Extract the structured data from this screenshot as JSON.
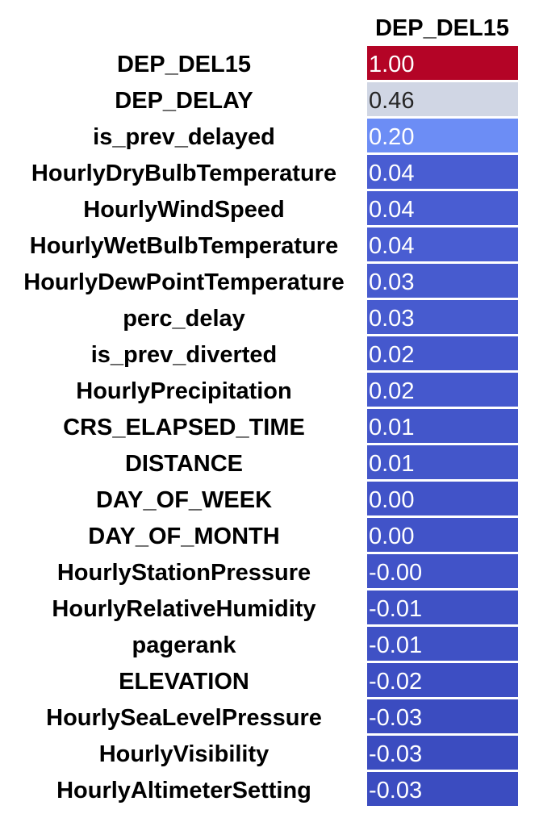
{
  "chart_data": {
    "type": "heatmap",
    "columns": [
      "DEP_DEL15"
    ],
    "rows": [
      {
        "label": "DEP_DEL15",
        "value": 1.0,
        "text": "1.00"
      },
      {
        "label": "DEP_DELAY",
        "value": 0.46,
        "text": "0.46"
      },
      {
        "label": "is_prev_delayed",
        "value": 0.2,
        "text": "0.20"
      },
      {
        "label": "HourlyDryBulbTemperature",
        "value": 0.04,
        "text": "0.04"
      },
      {
        "label": "HourlyWindSpeed",
        "value": 0.04,
        "text": "0.04"
      },
      {
        "label": "HourlyWetBulbTemperature",
        "value": 0.04,
        "text": "0.04"
      },
      {
        "label": "HourlyDewPointTemperature",
        "value": 0.03,
        "text": "0.03"
      },
      {
        "label": "perc_delay",
        "value": 0.03,
        "text": "0.03"
      },
      {
        "label": "is_prev_diverted",
        "value": 0.02,
        "text": "0.02"
      },
      {
        "label": "HourlyPrecipitation",
        "value": 0.02,
        "text": "0.02"
      },
      {
        "label": "CRS_ELAPSED_TIME",
        "value": 0.01,
        "text": "0.01"
      },
      {
        "label": "DISTANCE",
        "value": 0.01,
        "text": "0.01"
      },
      {
        "label": "DAY_OF_WEEK",
        "value": 0.0,
        "text": "0.00"
      },
      {
        "label": "DAY_OF_MONTH",
        "value": 0.0,
        "text": "0.00"
      },
      {
        "label": "HourlyStationPressure",
        "value": -0.0,
        "text": "-0.00"
      },
      {
        "label": "HourlyRelativeHumidity",
        "value": -0.01,
        "text": "-0.01"
      },
      {
        "label": "pagerank",
        "value": -0.01,
        "text": "-0.01"
      },
      {
        "label": "ELEVATION",
        "value": -0.02,
        "text": "-0.02"
      },
      {
        "label": "HourlySeaLevelPressure",
        "value": -0.03,
        "text": "-0.03"
      },
      {
        "label": "HourlyVisibility",
        "value": -0.03,
        "text": "-0.03"
      },
      {
        "label": "HourlyAltimeterSetting",
        "value": -0.03,
        "text": "-0.03"
      }
    ],
    "colormap": "coolwarm",
    "value_range": [
      -0.03,
      1.0
    ],
    "colors": {
      "low": "#3b4cc0",
      "mid": "#dddddd",
      "high": "#b40426"
    }
  }
}
